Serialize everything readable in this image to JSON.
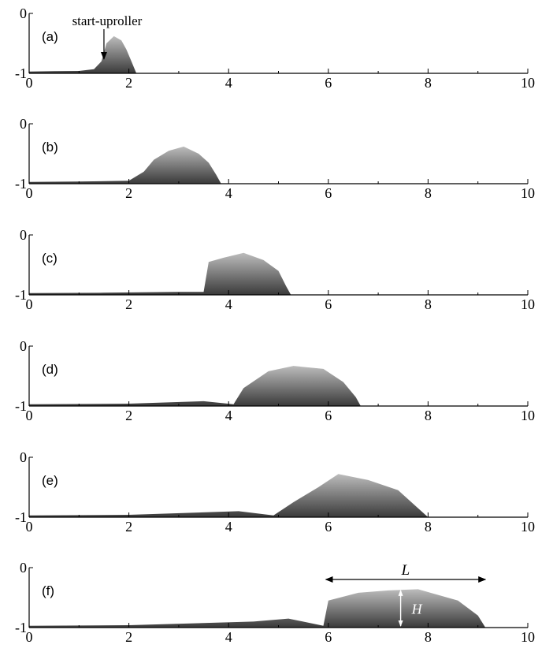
{
  "chart_data": {
    "type": "area",
    "xlim": [
      0,
      10
    ],
    "ylim": [
      -1,
      0
    ],
    "x_ticks": [
      "0",
      "2",
      "4",
      "6",
      "8",
      "10"
    ],
    "y_ticks": [
      "-1",
      "0"
    ],
    "colors": {
      "axis": "#000000",
      "current_dark": "#3a3a3a",
      "current_light": "#bcbcbc",
      "annotation_white": "#ffffff"
    },
    "panels": [
      {
        "label": "(a)",
        "annotation": "start-uproller",
        "annotation_x": 1.5,
        "profile": {
          "x": [
            0,
            0.5,
            1.0,
            1.3,
            1.45,
            1.55,
            1.7,
            1.85,
            1.95,
            2.05,
            2.15
          ],
          "y": [
            -0.97,
            -0.965,
            -0.96,
            -0.93,
            -0.8,
            -0.5,
            -0.38,
            -0.45,
            -0.6,
            -0.8,
            -1.0
          ]
        }
      },
      {
        "label": "(b)",
        "profile": {
          "x": [
            0,
            1.0,
            2.0,
            2.3,
            2.5,
            2.8,
            3.1,
            3.4,
            3.6,
            3.75,
            3.85
          ],
          "y": [
            -0.97,
            -0.965,
            -0.95,
            -0.8,
            -0.6,
            -0.45,
            -0.38,
            -0.5,
            -0.65,
            -0.85,
            -1.0
          ]
        }
      },
      {
        "label": "(c)",
        "profile": {
          "x": [
            0,
            1.5,
            3.0,
            3.5,
            3.6,
            3.9,
            4.3,
            4.7,
            5.0,
            5.15,
            5.25
          ],
          "y": [
            -0.97,
            -0.965,
            -0.95,
            -0.95,
            -0.45,
            -0.38,
            -0.3,
            -0.42,
            -0.6,
            -0.85,
            -1.0
          ]
        }
      },
      {
        "label": "(d)",
        "profile": {
          "x": [
            0,
            2.0,
            3.5,
            4.1,
            4.3,
            4.8,
            5.3,
            5.9,
            6.3,
            6.55,
            6.65
          ],
          "y": [
            -0.97,
            -0.96,
            -0.92,
            -0.97,
            -0.7,
            -0.42,
            -0.33,
            -0.38,
            -0.6,
            -0.85,
            -1.0
          ]
        }
      },
      {
        "label": "(e)",
        "profile": {
          "x": [
            0,
            2.0,
            4.2,
            4.9,
            5.3,
            5.8,
            6.2,
            6.8,
            7.4,
            7.8,
            8.0
          ],
          "y": [
            -0.97,
            -0.96,
            -0.9,
            -0.97,
            -0.75,
            -0.5,
            -0.28,
            -0.38,
            -0.55,
            -0.85,
            -1.0
          ]
        }
      },
      {
        "label": "(f)",
        "annotation_L": "L",
        "annotation_H": "H",
        "L_range": [
          5.95,
          9.15
        ],
        "H_x": 7.45,
        "H_range": [
          -1.0,
          -0.38
        ],
        "profile": {
          "x": [
            0,
            2.0,
            4.5,
            5.2,
            5.9,
            6.0,
            6.6,
            7.2,
            7.8,
            8.6,
            9.0,
            9.15
          ],
          "y": [
            -0.97,
            -0.96,
            -0.9,
            -0.85,
            -0.97,
            -0.55,
            -0.42,
            -0.38,
            -0.36,
            -0.55,
            -0.8,
            -1.0
          ]
        }
      }
    ]
  }
}
